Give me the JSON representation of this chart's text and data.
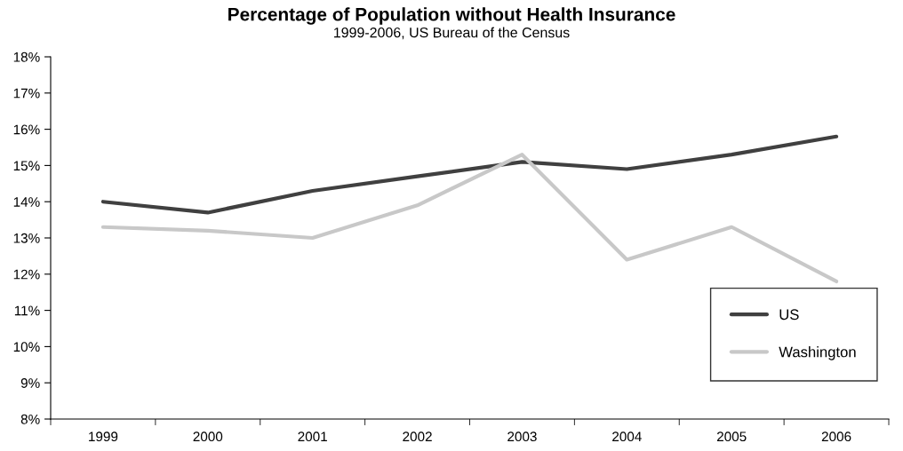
{
  "chart_data": {
    "type": "line",
    "title": "Percentage of Population without Health Insurance",
    "subtitle": "1999-2006, US Bureau of the Census",
    "categories": [
      "1999",
      "2000",
      "2001",
      "2002",
      "2003",
      "2004",
      "2005",
      "2006"
    ],
    "series": [
      {
        "name": "US",
        "color": "#404040",
        "values": [
          14.0,
          13.7,
          14.3,
          14.7,
          15.1,
          14.9,
          15.3,
          15.8
        ]
      },
      {
        "name": "Washington",
        "color": "#c8c8c8",
        "values": [
          13.3,
          13.2,
          13.0,
          13.9,
          15.3,
          12.4,
          13.3,
          11.8
        ]
      }
    ],
    "ylim": [
      8,
      18
    ],
    "yticks": [
      {
        "value": 8,
        "label": "8%"
      },
      {
        "value": 9,
        "label": "9%"
      },
      {
        "value": 10,
        "label": "10%"
      },
      {
        "value": 11,
        "label": "11%"
      },
      {
        "value": 12,
        "label": "12%"
      },
      {
        "value": 13,
        "label": "13%"
      },
      {
        "value": 14,
        "label": "14%"
      },
      {
        "value": 15,
        "label": "15%"
      },
      {
        "value": 16,
        "label": "16%"
      },
      {
        "value": 17,
        "label": "17%"
      },
      {
        "value": 18,
        "label": "18%"
      }
    ],
    "grid": false,
    "legend": "bottom right",
    "marker": "none",
    "line_style": "solid"
  }
}
